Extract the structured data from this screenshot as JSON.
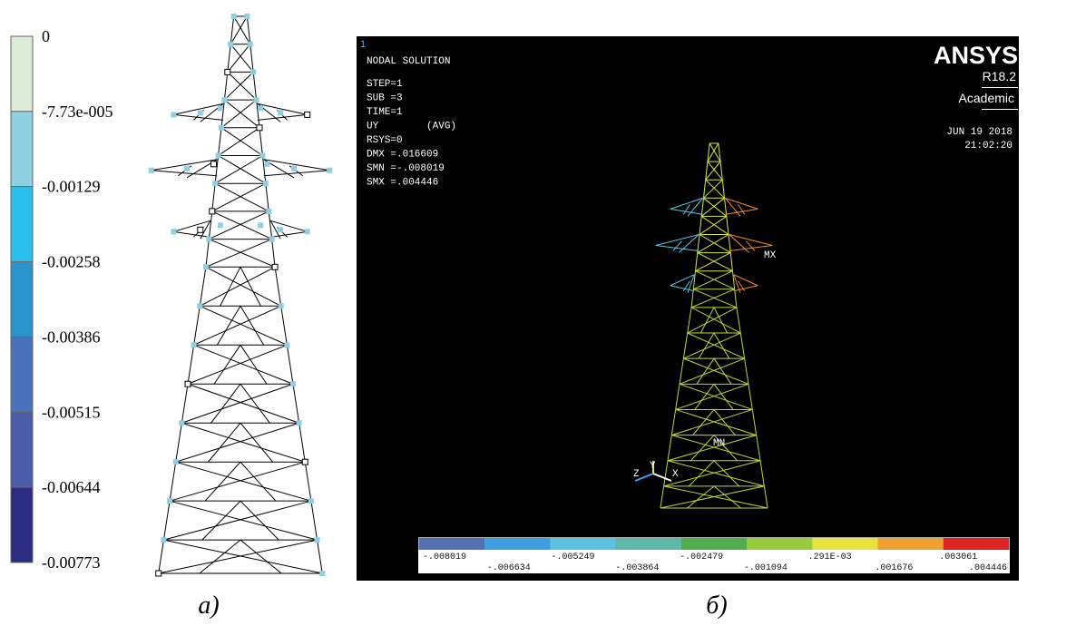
{
  "panel_a": {
    "legend": {
      "labels": [
        "0",
        "-7.73e-005",
        "-0.00129",
        "-0.00258",
        "-0.00386",
        "-0.00515",
        "-0.00644",
        "-0.00773"
      ],
      "colors": [
        "#dcecd8",
        "#8fd0e0",
        "#2bbfee",
        "#2a94cc",
        "#4a72ba",
        "#4a5caa",
        "#2c2c82"
      ]
    },
    "caption": "а)"
  },
  "panel_b": {
    "viewport": "1",
    "title": "NODAL SOLUTION",
    "info": [
      "STEP=1",
      "SUB =3",
      "TIME=1",
      "UY        (AVG)",
      "RSYS=0",
      "DMX =.016609",
      "SMN =-.008019",
      "SMX =.004446"
    ],
    "logo": "ANSYS",
    "version": "R18.2",
    "license": "Academic",
    "date": "JUN 19 2018",
    "time": "21:02:20",
    "max_label": "MX",
    "min_label": "MN",
    "axes": [
      "Y",
      "Z",
      "X"
    ],
    "colorbar": {
      "labels": [
        "-.008019",
        "-.006634",
        "-.005249",
        "-.003864",
        "-.002479",
        "-.001094",
        ".291E-03",
        ".001676",
        ".003061",
        ".004446"
      ],
      "colors": [
        "#5470b0",
        "#3c9fe0",
        "#5cc2e2",
        "#5ebaa8",
        "#52ae4c",
        "#98cc3e",
        "#e6e23e",
        "#f0a030",
        "#e02424"
      ]
    },
    "caption": "б)"
  }
}
